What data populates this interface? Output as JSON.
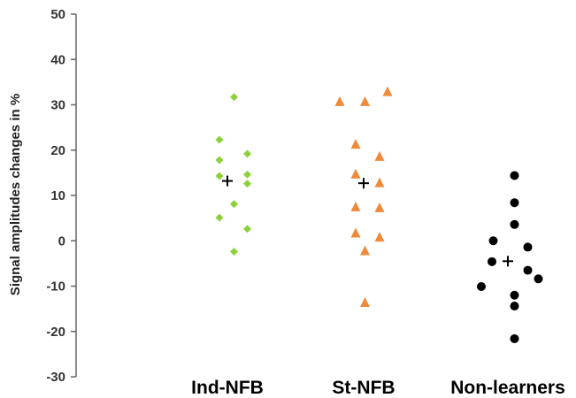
{
  "chart_data": {
    "type": "scatter",
    "title": "",
    "xlabel": "",
    "ylabel": "Signal amplitudes changes in %",
    "ylim": [
      -30,
      50
    ],
    "yticks": [
      50,
      40,
      30,
      20,
      10,
      0,
      -10,
      -20,
      -30
    ],
    "ytick_labels": [
      "50",
      "40",
      "30",
      "20",
      "10",
      "0",
      "-10",
      "-20",
      "-30"
    ],
    "grid": false,
    "legend": "none",
    "categories": [
      "Ind-NFB",
      "St-NFB",
      "Non-learners"
    ],
    "series": [
      {
        "category": "Ind-NFB",
        "marker": "diamond",
        "color": "#8cd13a",
        "points": [
          {
            "offset": 0.5,
            "y": 31.7
          },
          {
            "offset": -0.6,
            "y": 22.3
          },
          {
            "offset": -0.6,
            "y": 17.8
          },
          {
            "offset": -0.6,
            "y": 14.3
          },
          {
            "offset": -0.6,
            "y": 5.1
          },
          {
            "offset": 0.5,
            "y": 8.1
          },
          {
            "offset": 0.5,
            "y": -2.4
          },
          {
            "offset": 1.5,
            "y": 19.2
          },
          {
            "offset": 1.5,
            "y": 14.6
          },
          {
            "offset": 1.5,
            "y": 12.6
          },
          {
            "offset": 1.5,
            "y": 2.6
          }
        ],
        "mean": 13.2
      },
      {
        "category": "St-NFB",
        "marker": "triangle",
        "color": "#ee8a3a",
        "points": [
          {
            "offset": -1.8,
            "y": 30.7
          },
          {
            "offset": 0.1,
            "y": 30.7
          },
          {
            "offset": 1.8,
            "y": 32.9
          },
          {
            "offset": -0.6,
            "y": 21.3
          },
          {
            "offset": -0.6,
            "y": 14.7
          },
          {
            "offset": -0.6,
            "y": 7.5
          },
          {
            "offset": -0.6,
            "y": 1.7
          },
          {
            "offset": 1.2,
            "y": 18.6
          },
          {
            "offset": 1.2,
            "y": 12.8
          },
          {
            "offset": 1.2,
            "y": 7.3
          },
          {
            "offset": 1.2,
            "y": 0.8
          },
          {
            "offset": 0.1,
            "y": -2.2
          },
          {
            "offset": 0.1,
            "y": -13.6
          }
        ],
        "mean": 12.7
      },
      {
        "category": "Non-learners",
        "marker": "circle",
        "color": "#000000",
        "points": [
          {
            "offset": 0.5,
            "y": 14.4
          },
          {
            "offset": 0.5,
            "y": 8.4
          },
          {
            "offset": 0.5,
            "y": 3.6
          },
          {
            "offset": -1.1,
            "y": 0.0
          },
          {
            "offset": 1.5,
            "y": -1.4
          },
          {
            "offset": -1.2,
            "y": -4.6
          },
          {
            "offset": 1.5,
            "y": -6.5
          },
          {
            "offset": 2.3,
            "y": -8.4
          },
          {
            "offset": -2.0,
            "y": -10.1
          },
          {
            "offset": 0.5,
            "y": -12.0
          },
          {
            "offset": 0.5,
            "y": -14.4
          },
          {
            "offset": 0.5,
            "y": -21.6
          }
        ],
        "mean": -4.5
      }
    ]
  }
}
